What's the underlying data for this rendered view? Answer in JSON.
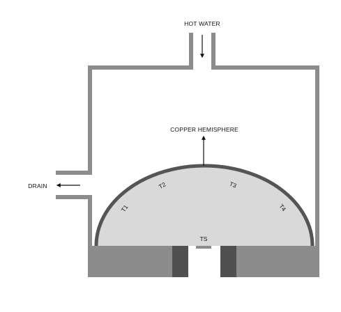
{
  "labels": {
    "hot_water": "HOT WATER",
    "copper_hemisphere": "COPPER HEMISPHERE",
    "drain": "DRAIN",
    "t1": "T1",
    "t2": "T2",
    "t3": "T3",
    "t4": "T4",
    "ts": "TS"
  },
  "colors": {
    "wall": "#8c8c8c",
    "base": "#8c8c8c",
    "dark_post": "#505050",
    "dome_fill": "#d9d9d9",
    "dome_outline": "#555555",
    "text": "#111111",
    "arrow": "#111111"
  }
}
